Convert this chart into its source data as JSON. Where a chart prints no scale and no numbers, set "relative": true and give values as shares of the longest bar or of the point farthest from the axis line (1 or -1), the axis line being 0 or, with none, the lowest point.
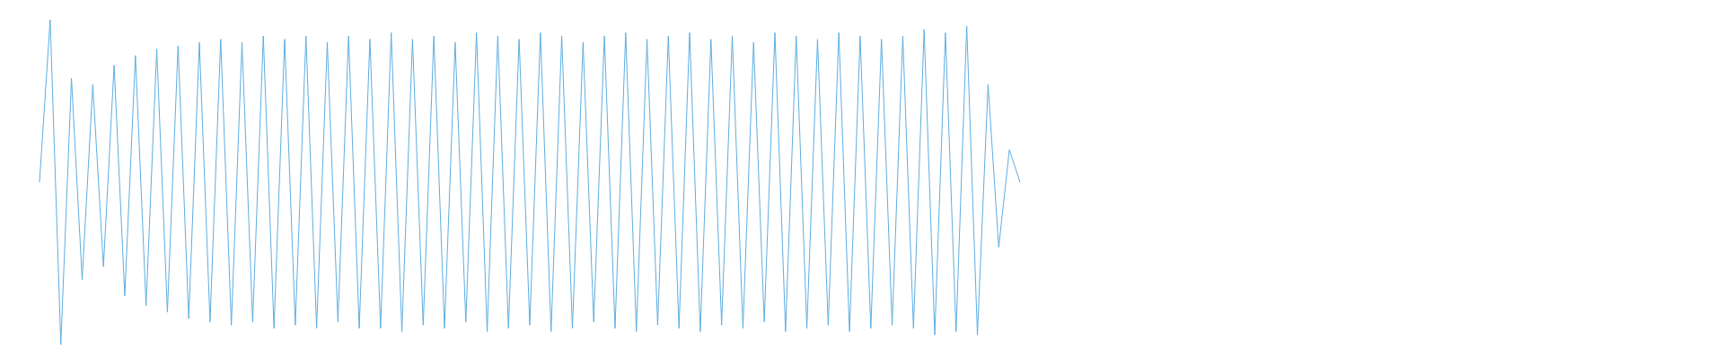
{
  "chart_data": {
    "type": "line",
    "relative": true,
    "categories": [
      null,
      null,
      null,
      null,
      null,
      null,
      null,
      null,
      null,
      null,
      null,
      null,
      null,
      null,
      null,
      null,
      null,
      null,
      null,
      null,
      null,
      null,
      null,
      null,
      null,
      null,
      null,
      null,
      null,
      null,
      null,
      null,
      null,
      null,
      null,
      null,
      null,
      null,
      null,
      null,
      null,
      null,
      null,
      null,
      null,
      null,
      null,
      null,
      null,
      null,
      null,
      null,
      null,
      null,
      null,
      null,
      null,
      null,
      null,
      null,
      null,
      null,
      null,
      null,
      null,
      null,
      null,
      null,
      null,
      null,
      null,
      null,
      null,
      null,
      null,
      null,
      null,
      null,
      null,
      null,
      null,
      null,
      null,
      null,
      null,
      null,
      null,
      null,
      null,
      null,
      null,
      null,
      null
    ],
    "series": [
      {
        "color": "#5dade2",
        "values": [
          0.5,
          1.0,
          0.0,
          0.82,
          0.2,
          0.8,
          0.24,
          0.86,
          0.15,
          0.89,
          0.12,
          0.91,
          0.1,
          0.92,
          0.08,
          0.93,
          0.07,
          0.94,
          0.06,
          0.93,
          0.07,
          0.95,
          0.05,
          0.94,
          0.06,
          0.95,
          0.05,
          0.93,
          0.07,
          0.95,
          0.05,
          0.94,
          0.05,
          0.96,
          0.04,
          0.94,
          0.06,
          0.95,
          0.05,
          0.93,
          0.07,
          0.96,
          0.04,
          0.95,
          0.05,
          0.94,
          0.06,
          0.96,
          0.04,
          0.95,
          0.05,
          0.93,
          0.07,
          0.95,
          0.05,
          0.96,
          0.04,
          0.94,
          0.06,
          0.95,
          0.05,
          0.96,
          0.04,
          0.94,
          0.06,
          0.95,
          0.05,
          0.93,
          0.07,
          0.96,
          0.04,
          0.95,
          0.05,
          0.94,
          0.06,
          0.96,
          0.04,
          0.95,
          0.05,
          0.94,
          0.06,
          0.95,
          0.05,
          0.97,
          0.03,
          0.96,
          0.04,
          0.98,
          0.03,
          0.8,
          0.3,
          0.6,
          0.5
        ]
      }
    ],
    "grid": false,
    "legend": false,
    "marker": "none",
    "line_style": "solid"
  }
}
